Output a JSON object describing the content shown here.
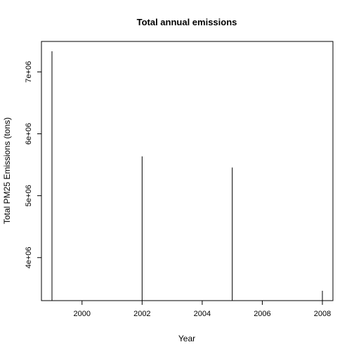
{
  "chart_data": {
    "type": "bar",
    "style": "histogram-spikes",
    "title": "Total annual emissions",
    "xlabel": "Year",
    "ylabel": "Total PM25 Emissions (tons)",
    "x": [
      1999,
      2002,
      2005,
      2008
    ],
    "values": [
      7332967,
      5635780,
      5454703,
      3464206
    ],
    "xlim": [
      1999,
      2008
    ],
    "ylim": [
      3464206,
      7332967
    ],
    "x_ticks": [
      2000,
      2002,
      2004,
      2006,
      2008
    ],
    "x_tick_labels": [
      "2000",
      "2002",
      "2004",
      "2006",
      "2008"
    ],
    "y_ticks": [
      4000000,
      5000000,
      6000000,
      7000000
    ],
    "y_tick_labels": [
      "4e+06",
      "5e+06",
      "6e+06",
      "7e+06"
    ],
    "grid": false,
    "legend": "none",
    "colors": {
      "line": "#000000",
      "background": "#ffffff"
    }
  }
}
